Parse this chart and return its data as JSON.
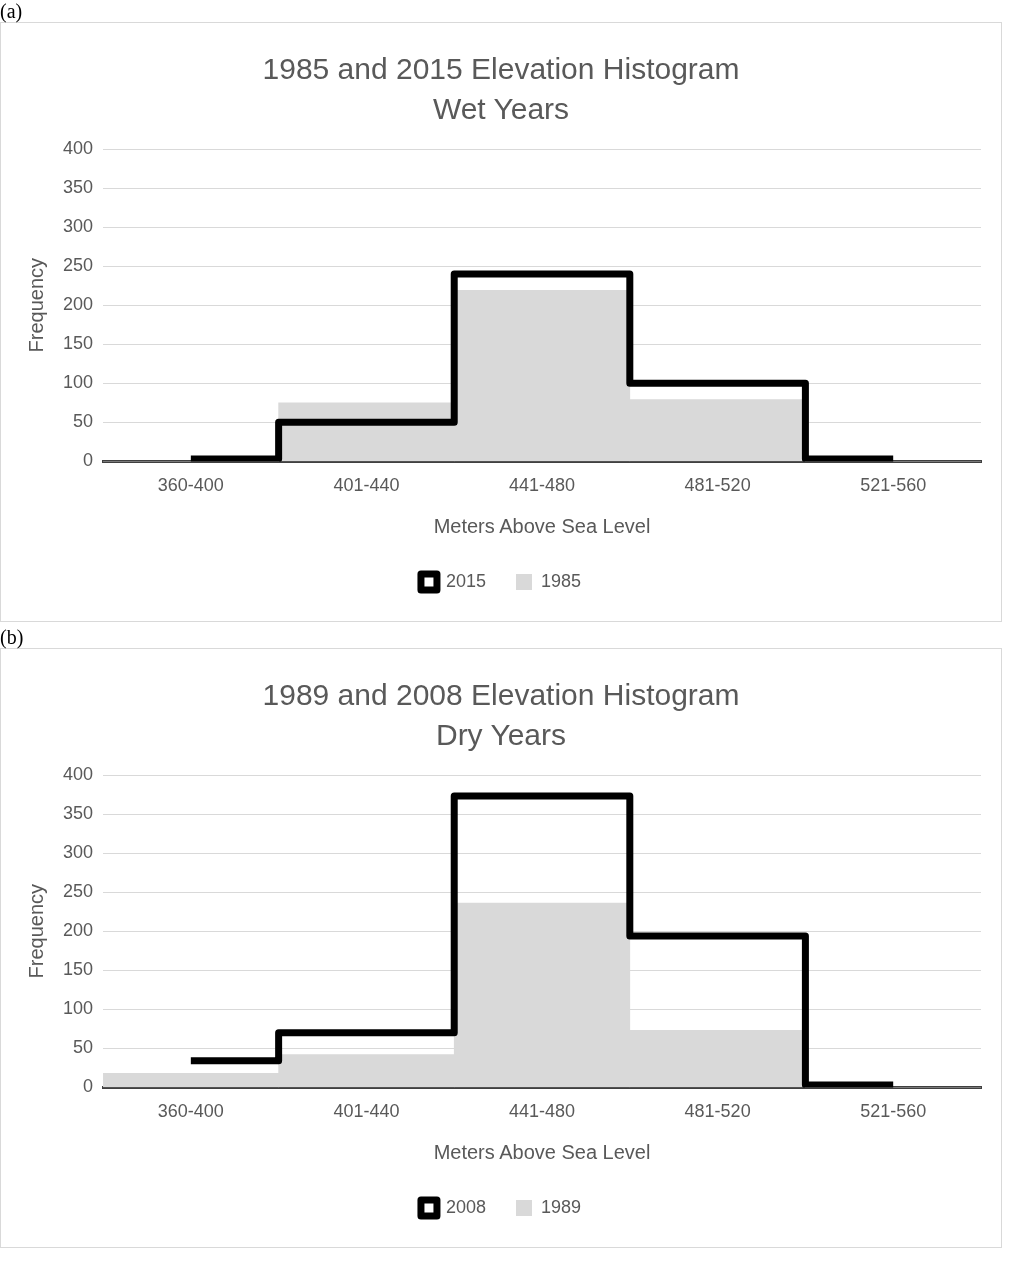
{
  "chart_data": [
    {
      "type": "bar",
      "title": "1985 and 2015 Elevation Histogram",
      "subtitle": "Wet Years",
      "xlabel": "Meters Above Sea Level",
      "ylabel": "Frequency",
      "annotations": [
        "(a)"
      ],
      "categories": [
        "360-400",
        "401-440",
        "441-480",
        "481-520",
        "521-560"
      ],
      "series": [
        {
          "name": "2015",
          "type": "step",
          "color": "#000000",
          "values": [
            3,
            50,
            240,
            100,
            3
          ]
        },
        {
          "name": "1985",
          "color": "#d9d9d9",
          "values": [
            0,
            75,
            219,
            79,
            0
          ]
        }
      ],
      "ylim": [
        0,
        400
      ],
      "yticks": [
        0,
        50,
        100,
        150,
        200,
        250,
        300,
        350,
        400
      ],
      "grid": "y",
      "legend": "bottom",
      "marker": "none"
    },
    {
      "type": "bar",
      "title": "1989 and 2008 Elevation Histogram",
      "subtitle": "Dry Years",
      "xlabel": "Meters Above Sea Level",
      "ylabel": "Frequency",
      "annotations": [
        "(b)"
      ],
      "categories": [
        "360-400",
        "401-440",
        "441-480",
        "481-520",
        "521-560"
      ],
      "series": [
        {
          "name": "2008",
          "type": "step",
          "color": "#000000",
          "values": [
            34,
            70,
            373,
            194,
            3
          ]
        },
        {
          "name": "1989",
          "color": "#d9d9d9",
          "values": [
            18,
            42,
            236,
            73,
            0
          ]
        }
      ],
      "ylim": [
        0,
        400
      ],
      "yticks": [
        0,
        50,
        100,
        150,
        200,
        250,
        300,
        350,
        400
      ],
      "grid": "y",
      "legend": "bottom",
      "marker": "none"
    }
  ]
}
